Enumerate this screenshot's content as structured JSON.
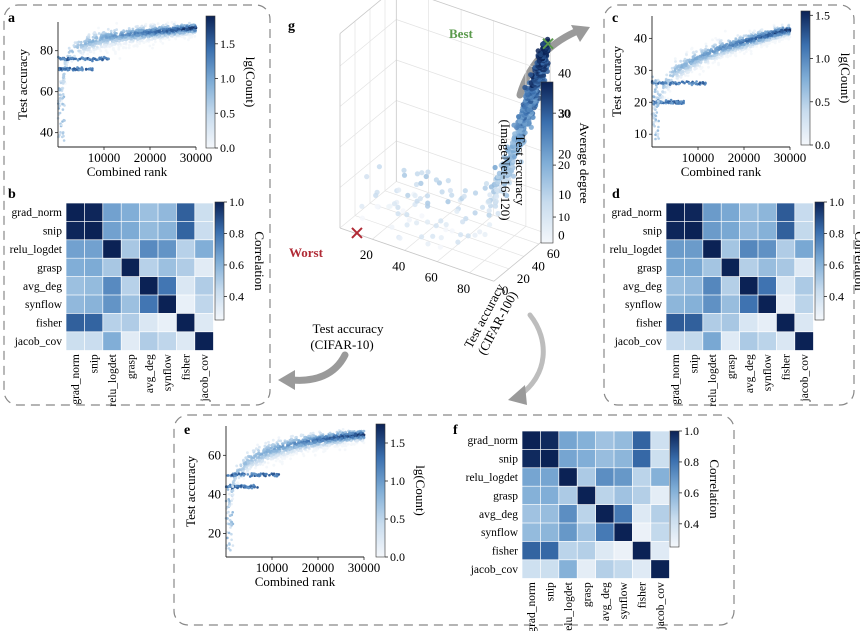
{
  "colors": {
    "dark": "#0b2255",
    "light": "#f4f7fb",
    "best": "#5a9a4c",
    "worst": "#b02a35",
    "frame": "#777777",
    "arrow": "#9a9a9a"
  },
  "panels": {
    "a": "a",
    "b": "b",
    "c": "c",
    "d": "d",
    "e": "e",
    "f": "f",
    "g": "g"
  },
  "density_labels": {
    "xlabel": "Combined rank",
    "ylabel": "Test accuracy",
    "colorbar_label": "lg(Count)"
  },
  "heatmap_labels": {
    "colorbar_label": "Correlation"
  },
  "scatter3d": {
    "best_label": "Best",
    "worst_label": "Worst",
    "zlabel_line1": "Test accuracy",
    "zlabel_line2": "(ImageNet-16-120)",
    "xlabel_line1": "Test accuracy",
    "xlabel_line2": "(CIFAR-10)",
    "ylabel_line1": "Test accuracy",
    "ylabel_line2": "(CIFAR-100)",
    "colorbar_label": "Average degree"
  },
  "chart_data": [
    {
      "id": "a",
      "type": "scatter",
      "title": "",
      "xlabel": "Combined rank",
      "ylabel": "Test accuracy",
      "xlim": [
        0,
        30000
      ],
      "ylim": [
        33,
        94
      ],
      "xticks": [
        10000,
        20000,
        30000
      ],
      "xtick_labels": [
        "10000",
        "20000",
        "30000"
      ],
      "yticks": [
        40,
        60,
        80
      ],
      "ytick_labels": [
        "40",
        "60",
        "80"
      ],
      "colorbar": {
        "label": "lg(Count)",
        "min": 0.0,
        "max": 1.9,
        "ticks": [
          0.0,
          0.5,
          1.0,
          1.5
        ],
        "tick_labels": [
          "0.0",
          "0.5",
          "1.0",
          "1.5"
        ]
      },
      "trend": {
        "x": [
          300,
          2000,
          5000,
          10000,
          15000,
          20000,
          25000,
          29000
        ],
        "y": [
          55,
          78,
          83,
          86.5,
          88,
          89,
          90,
          91
        ]
      },
      "plateaus": [
        {
          "y": 71,
          "x_end": 7500
        },
        {
          "y": 76,
          "x_end": 11000
        }
      ]
    },
    {
      "id": "c",
      "type": "scatter",
      "title": "",
      "xlabel": "Combined rank",
      "ylabel": "Test accuracy",
      "xlim": [
        0,
        30000
      ],
      "ylim": [
        6,
        47
      ],
      "xticks": [
        10000,
        20000,
        30000
      ],
      "xtick_labels": [
        "10000",
        "20000",
        "30000"
      ],
      "yticks": [
        10,
        20,
        30,
        40
      ],
      "ytick_labels": [
        "10",
        "20",
        "30",
        "40"
      ],
      "colorbar": {
        "label": "lg(Count)",
        "min": 0.0,
        "max": 1.55,
        "ticks": [
          0.0,
          0.5,
          1.0,
          1.5
        ],
        "tick_labels": [
          "0.0",
          "0.5",
          "1.0",
          "1.5"
        ]
      },
      "trend": {
        "x": [
          300,
          2000,
          5000,
          10000,
          15000,
          20000,
          25000,
          29000
        ],
        "y": [
          15,
          24,
          30,
          34,
          37,
          39,
          41,
          42.5
        ]
      },
      "plateaus": [
        {
          "y": 20,
          "x_end": 7000
        },
        {
          "y": 26,
          "x_end": 12000
        }
      ]
    },
    {
      "id": "e",
      "type": "scatter",
      "title": "",
      "xlabel": "Combined rank",
      "ylabel": "Test accuracy",
      "xlim": [
        0,
        30000
      ],
      "ylim": [
        8,
        75
      ],
      "xticks": [
        10000,
        20000,
        30000
      ],
      "xtick_labels": [
        "10000",
        "20000",
        "30000"
      ],
      "yticks": [
        20,
        40,
        60
      ],
      "ytick_labels": [
        "20",
        "40",
        "60"
      ],
      "colorbar": {
        "label": "lg(Count)",
        "min": 0.0,
        "max": 1.75,
        "ticks": [
          0.0,
          0.5,
          1.0,
          1.5
        ],
        "tick_labels": [
          "0.0",
          "0.5",
          "1.0",
          "1.5"
        ]
      },
      "trend": {
        "x": [
          300,
          2000,
          5000,
          10000,
          15000,
          20000,
          25000,
          29000
        ],
        "y": [
          30,
          50,
          58,
          63,
          66,
          68,
          69.5,
          70.5
        ]
      },
      "plateaus": [
        {
          "y": 44,
          "x_end": 7000
        },
        {
          "y": 50,
          "x_end": 12000
        }
      ]
    },
    {
      "id": "b",
      "type": "heatmap",
      "labels": [
        "grad_norm",
        "snip",
        "relu_logdet",
        "grasp",
        "avg_deg",
        "synflow",
        "fisher",
        "jacob_cov"
      ],
      "colorbar": {
        "label": "Correlation",
        "min": 0.25,
        "max": 1.0,
        "ticks": [
          0.4,
          0.6,
          0.8,
          1.0
        ],
        "tick_labels": [
          "0.4",
          "0.6",
          "0.8",
          "1.0"
        ]
      },
      "matrix": [
        [
          1.0,
          0.99,
          0.66,
          0.62,
          0.55,
          0.58,
          0.85,
          0.42
        ],
        [
          0.99,
          1.0,
          0.66,
          0.63,
          0.57,
          0.6,
          0.84,
          0.43
        ],
        [
          0.66,
          0.66,
          1.0,
          0.52,
          0.73,
          0.7,
          0.48,
          0.62
        ],
        [
          0.62,
          0.63,
          0.52,
          1.0,
          0.48,
          0.55,
          0.5,
          0.33
        ],
        [
          0.55,
          0.57,
          0.73,
          0.48,
          1.0,
          0.79,
          0.36,
          0.5
        ],
        [
          0.58,
          0.6,
          0.7,
          0.55,
          0.79,
          1.0,
          0.3,
          0.46
        ],
        [
          0.85,
          0.84,
          0.48,
          0.5,
          0.36,
          0.3,
          1.0,
          0.35
        ],
        [
          0.42,
          0.43,
          0.62,
          0.33,
          0.5,
          0.46,
          0.35,
          1.0
        ]
      ]
    },
    {
      "id": "d",
      "type": "heatmap",
      "labels": [
        "grad_norm",
        "snip",
        "relu_logdet",
        "grasp",
        "avg_deg",
        "synflow",
        "fisher",
        "jacob_cov"
      ],
      "colorbar": {
        "label": "Correlation",
        "min": 0.25,
        "max": 1.0,
        "ticks": [
          0.4,
          0.6,
          0.8,
          1.0
        ],
        "tick_labels": [
          "0.4",
          "0.6",
          "0.8",
          "1.0"
        ]
      },
      "matrix": [
        [
          1.0,
          0.99,
          0.68,
          0.64,
          0.56,
          0.59,
          0.86,
          0.44
        ],
        [
          0.99,
          1.0,
          0.68,
          0.64,
          0.58,
          0.61,
          0.85,
          0.45
        ],
        [
          0.68,
          0.68,
          1.0,
          0.53,
          0.74,
          0.71,
          0.5,
          0.64
        ],
        [
          0.64,
          0.64,
          0.53,
          1.0,
          0.49,
          0.56,
          0.52,
          0.34
        ],
        [
          0.56,
          0.58,
          0.74,
          0.49,
          1.0,
          0.8,
          0.37,
          0.51
        ],
        [
          0.59,
          0.61,
          0.71,
          0.56,
          0.8,
          1.0,
          0.31,
          0.47
        ],
        [
          0.86,
          0.85,
          0.5,
          0.52,
          0.37,
          0.31,
          1.0,
          0.36
        ],
        [
          0.44,
          0.45,
          0.64,
          0.34,
          0.51,
          0.47,
          0.36,
          1.0
        ]
      ]
    },
    {
      "id": "f",
      "type": "heatmap",
      "labels": [
        "grad_norm",
        "snip",
        "relu_logdet",
        "grasp",
        "avg_deg",
        "synflow",
        "fisher",
        "jacob_cov"
      ],
      "colorbar": {
        "label": "Correlation",
        "min": 0.25,
        "max": 1.0,
        "ticks": [
          0.4,
          0.6,
          0.8,
          1.0
        ],
        "tick_labels": [
          "0.4",
          "0.6",
          "0.8",
          "1.0"
        ]
      },
      "matrix": [
        [
          1.0,
          0.98,
          0.65,
          0.61,
          0.54,
          0.57,
          0.84,
          0.41
        ],
        [
          0.98,
          1.0,
          0.65,
          0.62,
          0.56,
          0.59,
          0.83,
          0.42
        ],
        [
          0.65,
          0.65,
          1.0,
          0.51,
          0.72,
          0.69,
          0.47,
          0.61
        ],
        [
          0.61,
          0.62,
          0.51,
          1.0,
          0.47,
          0.54,
          0.49,
          0.32
        ],
        [
          0.54,
          0.56,
          0.72,
          0.47,
          1.0,
          0.78,
          0.35,
          0.49
        ],
        [
          0.57,
          0.59,
          0.69,
          0.54,
          0.78,
          1.0,
          0.29,
          0.45
        ],
        [
          0.84,
          0.83,
          0.47,
          0.49,
          0.35,
          0.29,
          1.0,
          0.34
        ],
        [
          0.41,
          0.42,
          0.61,
          0.32,
          0.49,
          0.45,
          0.34,
          1.0
        ]
      ]
    },
    {
      "id": "g",
      "type": "scatter",
      "title": "",
      "xlabel": "Test accuracy (CIFAR-10)",
      "ylabel": "Test accuracy (CIFAR-100)",
      "zlabel": "Test accuracy (ImageNet-16-120)",
      "xlim": [
        0,
        95
      ],
      "ylim": [
        0,
        75
      ],
      "zlim": [
        0,
        48
      ],
      "xticks": [
        20,
        40,
        60,
        80
      ],
      "xtick_labels": [
        "20",
        "40",
        "60",
        "80"
      ],
      "yticks": [
        0,
        20,
        40,
        60
      ],
      "ytick_labels": [
        "0",
        "20",
        "40",
        "60"
      ],
      "zticks": [
        0,
        10,
        20,
        30,
        40
      ],
      "ztick_labels": [
        "0",
        "10",
        "20",
        "30",
        "40"
      ],
      "colorbar": {
        "label": "Average degree",
        "min": 5,
        "max": 36,
        "ticks": [
          10,
          20,
          30
        ],
        "tick_labels": [
          "10",
          "20",
          "30"
        ]
      },
      "best": {
        "x": 94.4,
        "y": 73.5,
        "z": 47.3
      },
      "worst": {
        "x": 10,
        "y": 1,
        "z": 0
      }
    }
  ]
}
